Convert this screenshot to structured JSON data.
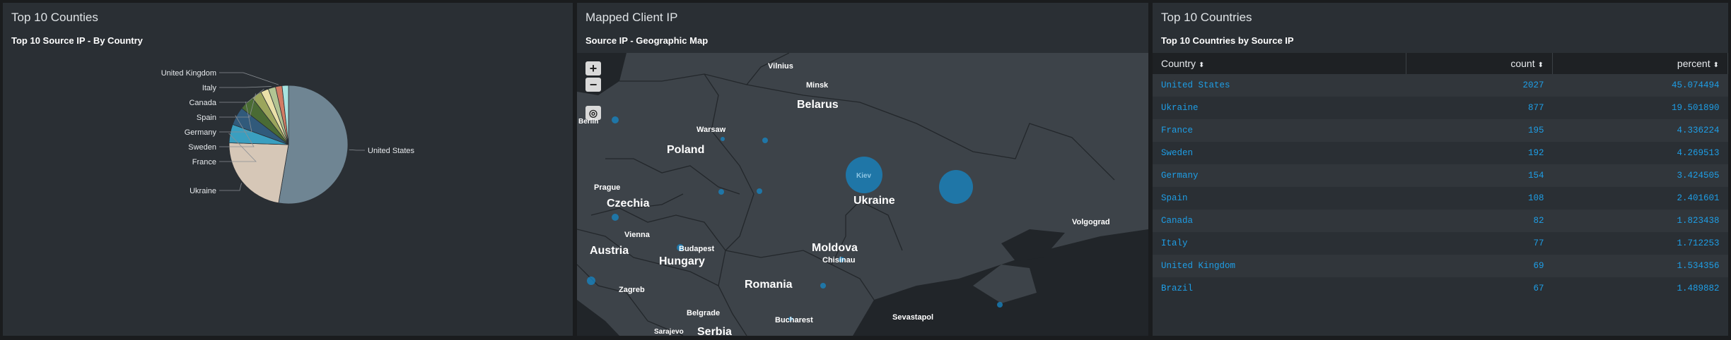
{
  "panel1": {
    "title": "Top 10 Counties",
    "subtitle": "Top 10 Source IP - By Country"
  },
  "panel2": {
    "title": "Mapped Client IP",
    "subtitle": "Source IP - Geographic Map",
    "zoom_in": "+",
    "zoom_out": "−",
    "locate_icon": "crosshair-icon",
    "labels": {
      "vilnius": "Vilnius",
      "minsk": "Minsk",
      "belarus": "Belarus",
      "warsaw": "Warsaw",
      "berlin": "Berlin",
      "poland": "Poland",
      "kiev": "Kiev",
      "ukraine": "Ukraine",
      "prague": "Prague",
      "czechia": "Czechia",
      "vienna": "Vienna",
      "budapest": "Budapest",
      "austria": "Austria",
      "hungary": "Hungary",
      "moldova": "Moldova",
      "chisinau": "Chisinau",
      "volgograd": "Volgograd",
      "romania": "Romania",
      "zagreb": "Zagreb",
      "belgrade": "Belgrade",
      "bucharest": "Bucharest",
      "sevastapol": "Sevastapol",
      "sarajevo": "Sarajevo",
      "serbia": "Serbia"
    }
  },
  "panel3": {
    "title": "Top 10 Countries",
    "subtitle": "Top 10 Countries by Source IP",
    "columns": [
      "Country",
      "count",
      "percent"
    ],
    "sort_icon": "⬍",
    "rows": [
      {
        "country": "United States",
        "count": "2027",
        "percent": "45.074494"
      },
      {
        "country": "Ukraine",
        "count": "877",
        "percent": "19.501890"
      },
      {
        "country": "France",
        "count": "195",
        "percent": "4.336224"
      },
      {
        "country": "Sweden",
        "count": "192",
        "percent": "4.269513"
      },
      {
        "country": "Germany",
        "count": "154",
        "percent": "3.424505"
      },
      {
        "country": "Spain",
        "count": "108",
        "percent": "2.401601"
      },
      {
        "country": "Canada",
        "count": "82",
        "percent": "1.823438"
      },
      {
        "country": "Italy",
        "count": "77",
        "percent": "1.712253"
      },
      {
        "country": "United Kingdom",
        "count": "69",
        "percent": "1.534356"
      },
      {
        "country": "Brazil",
        "count": "67",
        "percent": "1.489882"
      }
    ]
  },
  "chart_data": {
    "type": "pie",
    "title": "Top 10 Source IP - By Country",
    "categories": [
      "United States",
      "Ukraine",
      "France",
      "Sweden",
      "Germany",
      "Spain",
      "Canada",
      "Italy",
      "United Kingdom",
      "Brazil"
    ],
    "values": [
      2027,
      877,
      195,
      192,
      154,
      108,
      82,
      77,
      69,
      67
    ],
    "colors": [
      "#6f8593",
      "#d6c7b7",
      "#3a9fc0",
      "#315a7b",
      "#4a6b34",
      "#9ba55c",
      "#eae0a8",
      "#b2c493",
      "#d27c64",
      "#a7e3e0"
    ]
  }
}
